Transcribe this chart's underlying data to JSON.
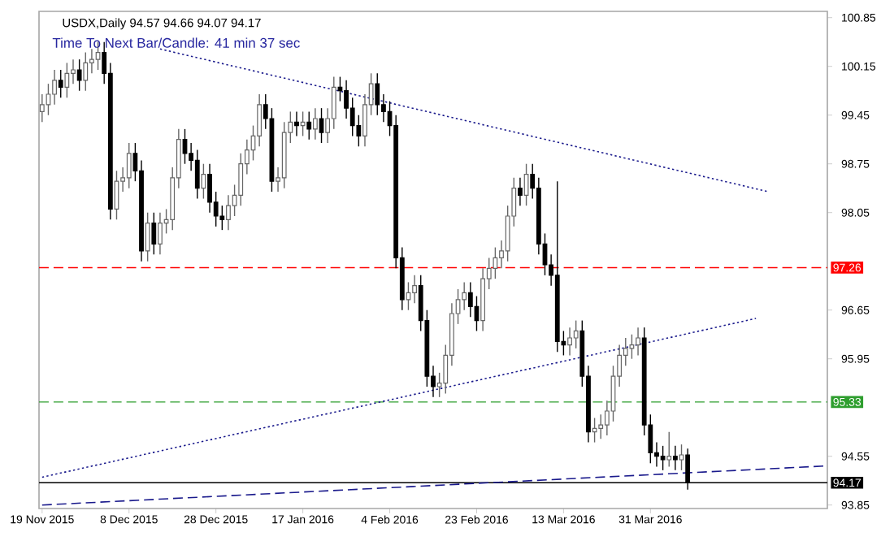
{
  "chart_data": {
    "type": "candlestick",
    "title": "USDX,Daily 94.57 94.66 94.07 94.17",
    "annotations": [
      "Time To Next Bar/Candle: 41 min 37 sec"
    ],
    "categories": [
      "19 Nov 2015",
      null,
      null,
      null,
      null,
      null,
      null,
      null,
      null,
      null,
      null,
      null,
      null,
      null,
      "8 Dec 2015",
      null,
      null,
      null,
      null,
      null,
      null,
      null,
      null,
      null,
      null,
      null,
      null,
      null,
      "28 Dec 2015",
      null,
      null,
      null,
      null,
      null,
      null,
      null,
      null,
      null,
      null,
      null,
      null,
      null,
      "17 Jan 2016",
      null,
      null,
      null,
      null,
      null,
      null,
      null,
      null,
      null,
      null,
      null,
      null,
      null,
      "4 Feb 2016",
      null,
      null,
      null,
      null,
      null,
      null,
      null,
      null,
      null,
      null,
      null,
      null,
      null,
      "23 Feb 2016",
      null,
      null,
      null,
      null,
      null,
      null,
      null,
      null,
      null,
      null,
      null,
      null,
      null,
      "13 Mar 2016",
      null,
      null,
      null,
      null,
      null,
      null,
      null,
      null,
      null,
      null,
      null,
      null,
      null,
      "31 Mar 2016",
      null,
      null,
      null,
      null,
      null,
      null,
      null,
      null,
      null,
      null,
      null,
      null,
      null,
      null,
      null,
      null,
      null,
      null,
      null,
      null,
      null,
      null,
      null,
      null,
      null,
      null,
      null,
      null
    ],
    "ohlc": [
      [
        99.5,
        99.75,
        99.35,
        99.6
      ],
      [
        99.6,
        99.9,
        99.45,
        99.75
      ],
      [
        99.75,
        100.1,
        99.6,
        99.95
      ],
      [
        99.95,
        100.1,
        99.7,
        99.85
      ],
      [
        99.85,
        100.2,
        99.7,
        100.05
      ],
      [
        100.05,
        100.25,
        99.9,
        100.1
      ],
      [
        100.1,
        100.25,
        99.8,
        99.95
      ],
      [
        99.95,
        100.35,
        99.8,
        100.2
      ],
      [
        100.2,
        100.4,
        100.05,
        100.25
      ],
      [
        100.25,
        100.5,
        100.1,
        100.35
      ],
      [
        100.35,
        100.5,
        99.9,
        100.05
      ],
      [
        100.05,
        100.2,
        97.95,
        98.1
      ],
      [
        98.1,
        98.65,
        97.95,
        98.5
      ],
      [
        98.5,
        98.7,
        98.35,
        98.55
      ],
      [
        98.55,
        99.05,
        98.4,
        98.9
      ],
      [
        98.9,
        99.05,
        98.5,
        98.65
      ],
      [
        98.65,
        98.8,
        97.35,
        97.5
      ],
      [
        97.5,
        98.05,
        97.35,
        97.9
      ],
      [
        97.9,
        98.05,
        97.45,
        97.6
      ],
      [
        97.6,
        98.05,
        97.45,
        97.9
      ],
      [
        97.9,
        98.1,
        97.75,
        97.95
      ],
      [
        97.95,
        98.7,
        97.8,
        98.55
      ],
      [
        98.55,
        99.25,
        98.4,
        99.1
      ],
      [
        99.1,
        99.25,
        98.75,
        98.9
      ],
      [
        98.9,
        99.05,
        98.65,
        98.8
      ],
      [
        98.8,
        98.95,
        98.25,
        98.4
      ],
      [
        98.4,
        98.75,
        98.25,
        98.6
      ],
      [
        98.6,
        98.75,
        98.05,
        98.2
      ],
      [
        98.2,
        98.35,
        97.85,
        98.0
      ],
      [
        98.0,
        98.15,
        97.8,
        97.95
      ],
      [
        97.95,
        98.3,
        97.8,
        98.15
      ],
      [
        98.15,
        98.45,
        98.0,
        98.3
      ],
      [
        98.3,
        98.9,
        98.15,
        98.75
      ],
      [
        98.75,
        99.1,
        98.6,
        98.95
      ],
      [
        98.95,
        99.3,
        98.8,
        99.15
      ],
      [
        99.15,
        99.75,
        99.0,
        99.6
      ],
      [
        99.6,
        99.75,
        99.25,
        99.4
      ],
      [
        99.4,
        99.55,
        98.35,
        98.5
      ],
      [
        98.5,
        98.7,
        98.35,
        98.55
      ],
      [
        98.55,
        99.35,
        98.4,
        99.2
      ],
      [
        99.2,
        99.5,
        99.05,
        99.35
      ],
      [
        99.35,
        99.5,
        99.15,
        99.3
      ],
      [
        99.3,
        99.5,
        99.15,
        99.35
      ],
      [
        99.35,
        99.5,
        99.1,
        99.25
      ],
      [
        99.25,
        99.55,
        99.1,
        99.4
      ],
      [
        99.4,
        99.55,
        99.05,
        99.2
      ],
      [
        99.2,
        99.55,
        99.05,
        99.4
      ],
      [
        99.4,
        100.0,
        99.25,
        99.85
      ],
      [
        99.85,
        100.0,
        99.65,
        99.8
      ],
      [
        99.8,
        99.95,
        99.4,
        99.55
      ],
      [
        99.55,
        99.7,
        99.15,
        99.3
      ],
      [
        99.3,
        99.45,
        99.0,
        99.15
      ],
      [
        99.15,
        99.75,
        99.0,
        99.6
      ],
      [
        99.6,
        100.05,
        99.45,
        99.9
      ],
      [
        99.9,
        100.05,
        99.45,
        99.6
      ],
      [
        99.6,
        99.75,
        99.35,
        99.5
      ],
      [
        99.5,
        99.65,
        99.15,
        99.3
      ],
      [
        99.3,
        99.45,
        97.25,
        97.4
      ],
      [
        97.4,
        97.55,
        96.65,
        96.8
      ],
      [
        96.8,
        97.05,
        96.65,
        96.9
      ],
      [
        96.9,
        97.15,
        96.75,
        97.0
      ],
      [
        97.0,
        97.15,
        96.35,
        96.5
      ],
      [
        96.5,
        96.65,
        95.55,
        95.7
      ],
      [
        95.7,
        95.85,
        95.4,
        95.55
      ],
      [
        95.55,
        95.75,
        95.4,
        95.6
      ],
      [
        95.6,
        96.15,
        95.45,
        96.0
      ],
      [
        96.0,
        96.75,
        95.85,
        96.6
      ],
      [
        96.6,
        96.95,
        96.45,
        96.8
      ],
      [
        96.8,
        97.05,
        96.65,
        96.9
      ],
      [
        96.9,
        97.05,
        96.55,
        96.7
      ],
      [
        96.7,
        96.85,
        96.35,
        96.5
      ],
      [
        96.5,
        97.25,
        96.35,
        97.1
      ],
      [
        97.1,
        97.4,
        96.95,
        97.25
      ],
      [
        97.25,
        97.55,
        97.1,
        97.4
      ],
      [
        97.4,
        97.65,
        97.25,
        97.5
      ],
      [
        97.5,
        98.15,
        97.35,
        98.0
      ],
      [
        98.0,
        98.55,
        97.85,
        98.4
      ],
      [
        98.4,
        98.55,
        98.15,
        98.3
      ],
      [
        98.3,
        98.75,
        98.15,
        98.6
      ],
      [
        98.6,
        98.75,
        98.25,
        98.4
      ],
      [
        98.4,
        98.55,
        97.45,
        97.6
      ],
      [
        97.6,
        97.75,
        97.15,
        97.3
      ],
      [
        97.3,
        97.45,
        97.0,
        97.15
      ],
      [
        97.15,
        98.5,
        96.05,
        96.2
      ],
      [
        96.2,
        96.35,
        96.0,
        96.15
      ],
      [
        96.15,
        96.4,
        96.0,
        96.25
      ],
      [
        96.25,
        96.5,
        96.1,
        96.35
      ],
      [
        96.35,
        96.5,
        95.55,
        95.7
      ],
      [
        95.7,
        95.85,
        94.75,
        94.9
      ],
      [
        94.9,
        95.1,
        94.75,
        94.95
      ],
      [
        94.95,
        95.15,
        94.8,
        95.0
      ],
      [
        95.0,
        95.35,
        94.85,
        95.2
      ],
      [
        95.2,
        95.85,
        95.05,
        95.7
      ],
      [
        95.7,
        96.15,
        95.55,
        96.0
      ],
      [
        96.0,
        96.25,
        95.85,
        96.1
      ],
      [
        96.1,
        96.3,
        95.95,
        96.15
      ],
      [
        96.15,
        96.4,
        96.0,
        96.25
      ],
      [
        96.25,
        96.4,
        94.85,
        95.0
      ],
      [
        95.0,
        95.15,
        94.45,
        94.6
      ],
      [
        94.6,
        94.75,
        94.4,
        94.55
      ],
      [
        94.55,
        94.7,
        94.35,
        94.5
      ],
      [
        94.5,
        94.9,
        94.4,
        94.55
      ],
      [
        94.55,
        94.7,
        94.35,
        94.5
      ],
      [
        94.5,
        94.72,
        94.35,
        94.57
      ],
      [
        94.57,
        94.66,
        94.07,
        94.17
      ],
      null,
      null,
      null,
      null,
      null,
      null,
      null,
      null,
      null,
      null,
      null,
      null,
      null,
      null,
      null,
      null,
      null,
      null,
      null,
      null,
      null,
      null
    ],
    "series": [
      {
        "type": "line",
        "color": "#1a1a8c",
        "line_style": "dotted",
        "values": [
          null,
          null,
          null,
          null,
          null,
          null,
          null,
          null,
          null,
          null,
          null,
          null,
          null,
          null,
          null,
          null,
          null,
          null,
          null,
          100.4,
          null,
          null,
          null,
          null,
          null,
          null,
          null,
          null,
          null,
          null,
          null,
          null,
          null,
          null,
          null,
          null,
          null,
          null,
          null,
          null,
          null,
          null,
          null,
          null,
          null,
          null,
          null,
          null,
          null,
          null,
          null,
          null,
          null,
          null,
          null,
          null,
          null,
          null,
          null,
          null,
          null,
          null,
          null,
          null,
          null,
          null,
          null,
          null,
          null,
          null,
          null,
          null,
          null,
          null,
          null,
          null,
          null,
          null,
          null,
          null,
          null,
          null,
          null,
          null,
          null,
          null,
          null,
          null,
          null,
          null,
          null,
          null,
          null,
          null,
          null,
          null,
          null,
          null,
          null,
          null,
          null,
          null,
          null,
          null,
          null,
          null,
          null,
          null,
          null,
          null,
          null,
          null,
          null,
          null,
          null,
          null,
          null,
          98.35,
          null,
          null,
          null,
          null,
          null,
          null,
          null,
          null,
          null
        ]
      },
      {
        "type": "line",
        "color": "#1a1a8c",
        "line_style": "dotted",
        "values": [
          94.25,
          null,
          null,
          null,
          null,
          null,
          null,
          null,
          null,
          null,
          null,
          null,
          null,
          null,
          null,
          null,
          null,
          null,
          null,
          null,
          null,
          null,
          null,
          null,
          null,
          null,
          null,
          null,
          null,
          null,
          null,
          null,
          null,
          null,
          null,
          null,
          null,
          null,
          null,
          null,
          null,
          null,
          null,
          null,
          null,
          null,
          null,
          null,
          null,
          null,
          null,
          null,
          null,
          null,
          null,
          null,
          null,
          null,
          null,
          null,
          null,
          null,
          null,
          null,
          null,
          null,
          null,
          null,
          null,
          null,
          null,
          null,
          null,
          null,
          null,
          null,
          null,
          null,
          null,
          null,
          null,
          null,
          null,
          null,
          null,
          null,
          null,
          null,
          null,
          null,
          null,
          null,
          null,
          null,
          null,
          null,
          null,
          null,
          null,
          null,
          null,
          null,
          null,
          null,
          null,
          null,
          null,
          null,
          null,
          null,
          null,
          null,
          null,
          null,
          null,
          96.53,
          null,
          null,
          null,
          null,
          null,
          null,
          null,
          null,
          null,
          null,
          null
        ]
      },
      {
        "type": "line",
        "color": "#1a1a8c",
        "line_style": "dashed",
        "values": [
          93.85,
          null,
          null,
          null,
          null,
          null,
          null,
          null,
          null,
          null,
          null,
          null,
          null,
          null,
          null,
          null,
          null,
          null,
          null,
          null,
          null,
          null,
          null,
          null,
          null,
          null,
          null,
          null,
          null,
          null,
          null,
          null,
          null,
          null,
          null,
          null,
          null,
          null,
          null,
          null,
          null,
          null,
          null,
          null,
          null,
          null,
          null,
          null,
          null,
          null,
          null,
          null,
          null,
          null,
          null,
          null,
          null,
          null,
          null,
          null,
          null,
          null,
          null,
          null,
          null,
          null,
          null,
          null,
          null,
          null,
          null,
          null,
          null,
          null,
          null,
          null,
          null,
          null,
          null,
          null,
          null,
          null,
          null,
          null,
          null,
          null,
          null,
          null,
          null,
          null,
          null,
          null,
          null,
          null,
          null,
          null,
          null,
          null,
          null,
          null,
          null,
          null,
          null,
          null,
          null,
          null,
          null,
          null,
          null,
          null,
          null,
          null,
          null,
          null,
          null,
          null,
          null,
          null,
          null,
          null,
          null,
          null,
          null,
          null,
          null,
          null,
          94.41
        ]
      }
    ],
    "ref_lines": [
      {
        "axis": "y",
        "value": 97.26,
        "label": "97.26",
        "color": "#ff0000",
        "line_style": "dashed"
      },
      {
        "axis": "y",
        "value": 95.33,
        "label": "95.33",
        "color": "#2e9e2e",
        "line_style": "dashed"
      },
      {
        "axis": "y",
        "value": 94.17,
        "label": "94.17",
        "color": "#000000",
        "line_style": "solid"
      }
    ],
    "ylim": [
      93.8,
      100.94
    ],
    "yticks": [
      100.85,
      100.15,
      99.45,
      98.75,
      98.05,
      96.65,
      95.95,
      94.55,
      93.85
    ],
    "grid": false
  }
}
